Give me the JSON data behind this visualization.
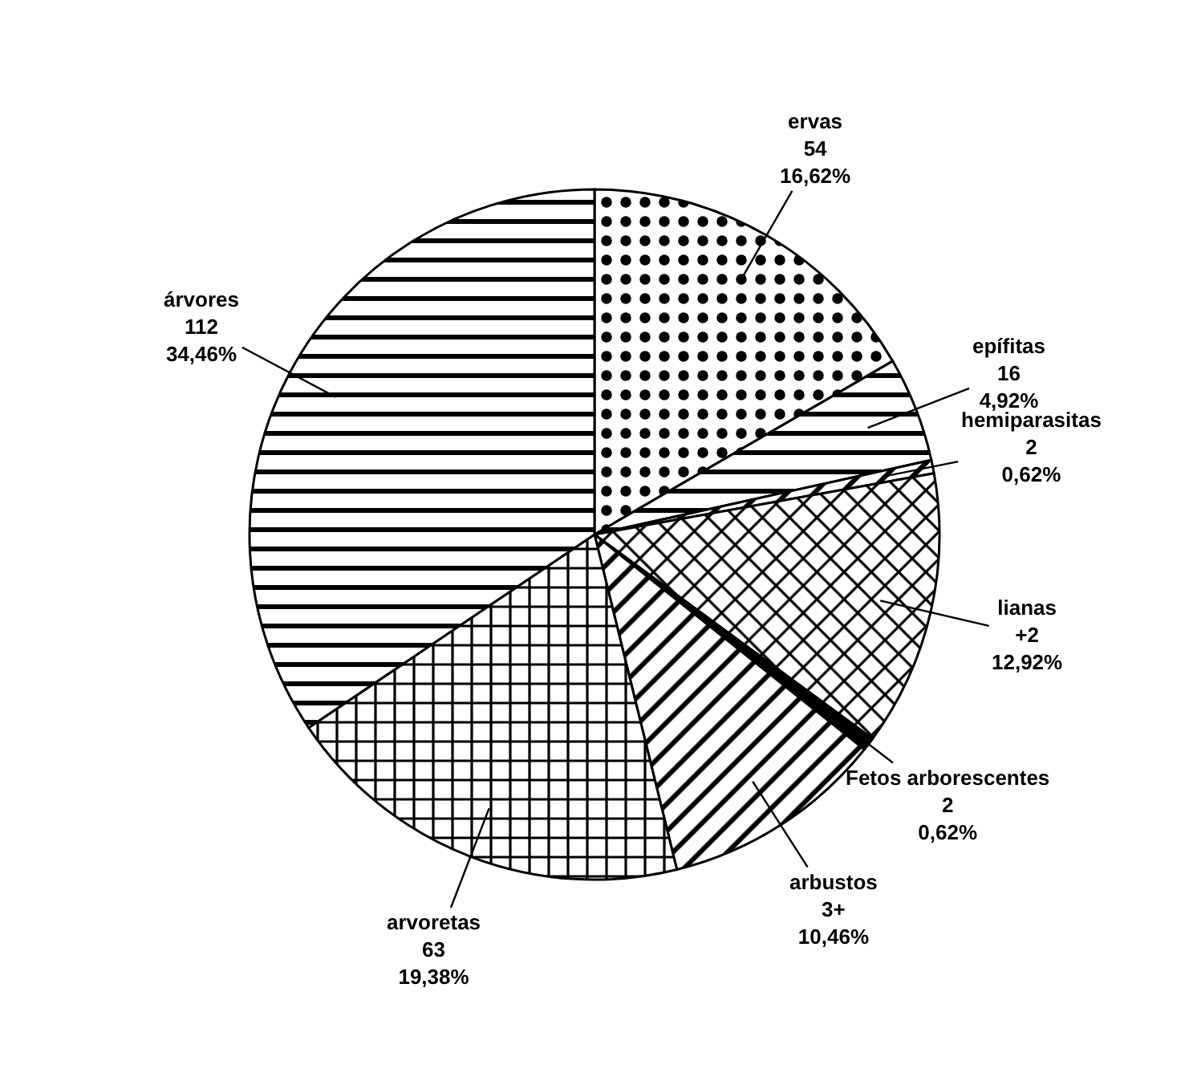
{
  "chart_data": {
    "type": "pie",
    "categories": [
      "ervas",
      "epífitas",
      "hemiparasitas",
      "lianas",
      "Fetos arborescentes",
      "arbustos",
      "arvoretas",
      "árvores"
    ],
    "values": [
      16.62,
      4.92,
      0.62,
      12.92,
      0.62,
      10.46,
      19.38,
      34.46
    ],
    "value_labels": [
      "54\n16,62%",
      "16\n4,92%",
      "2\n0,62%",
      "+2\n12,92%",
      "2\n0,62%",
      "3+\n10,46%",
      "63\n19,38%",
      "112\n34,46%"
    ],
    "colors": [
      "#000000",
      "#000000",
      "#000000",
      "#000000",
      "#000000",
      "#000000",
      "#000000",
      "#000000"
    ],
    "legend": false
  }
}
